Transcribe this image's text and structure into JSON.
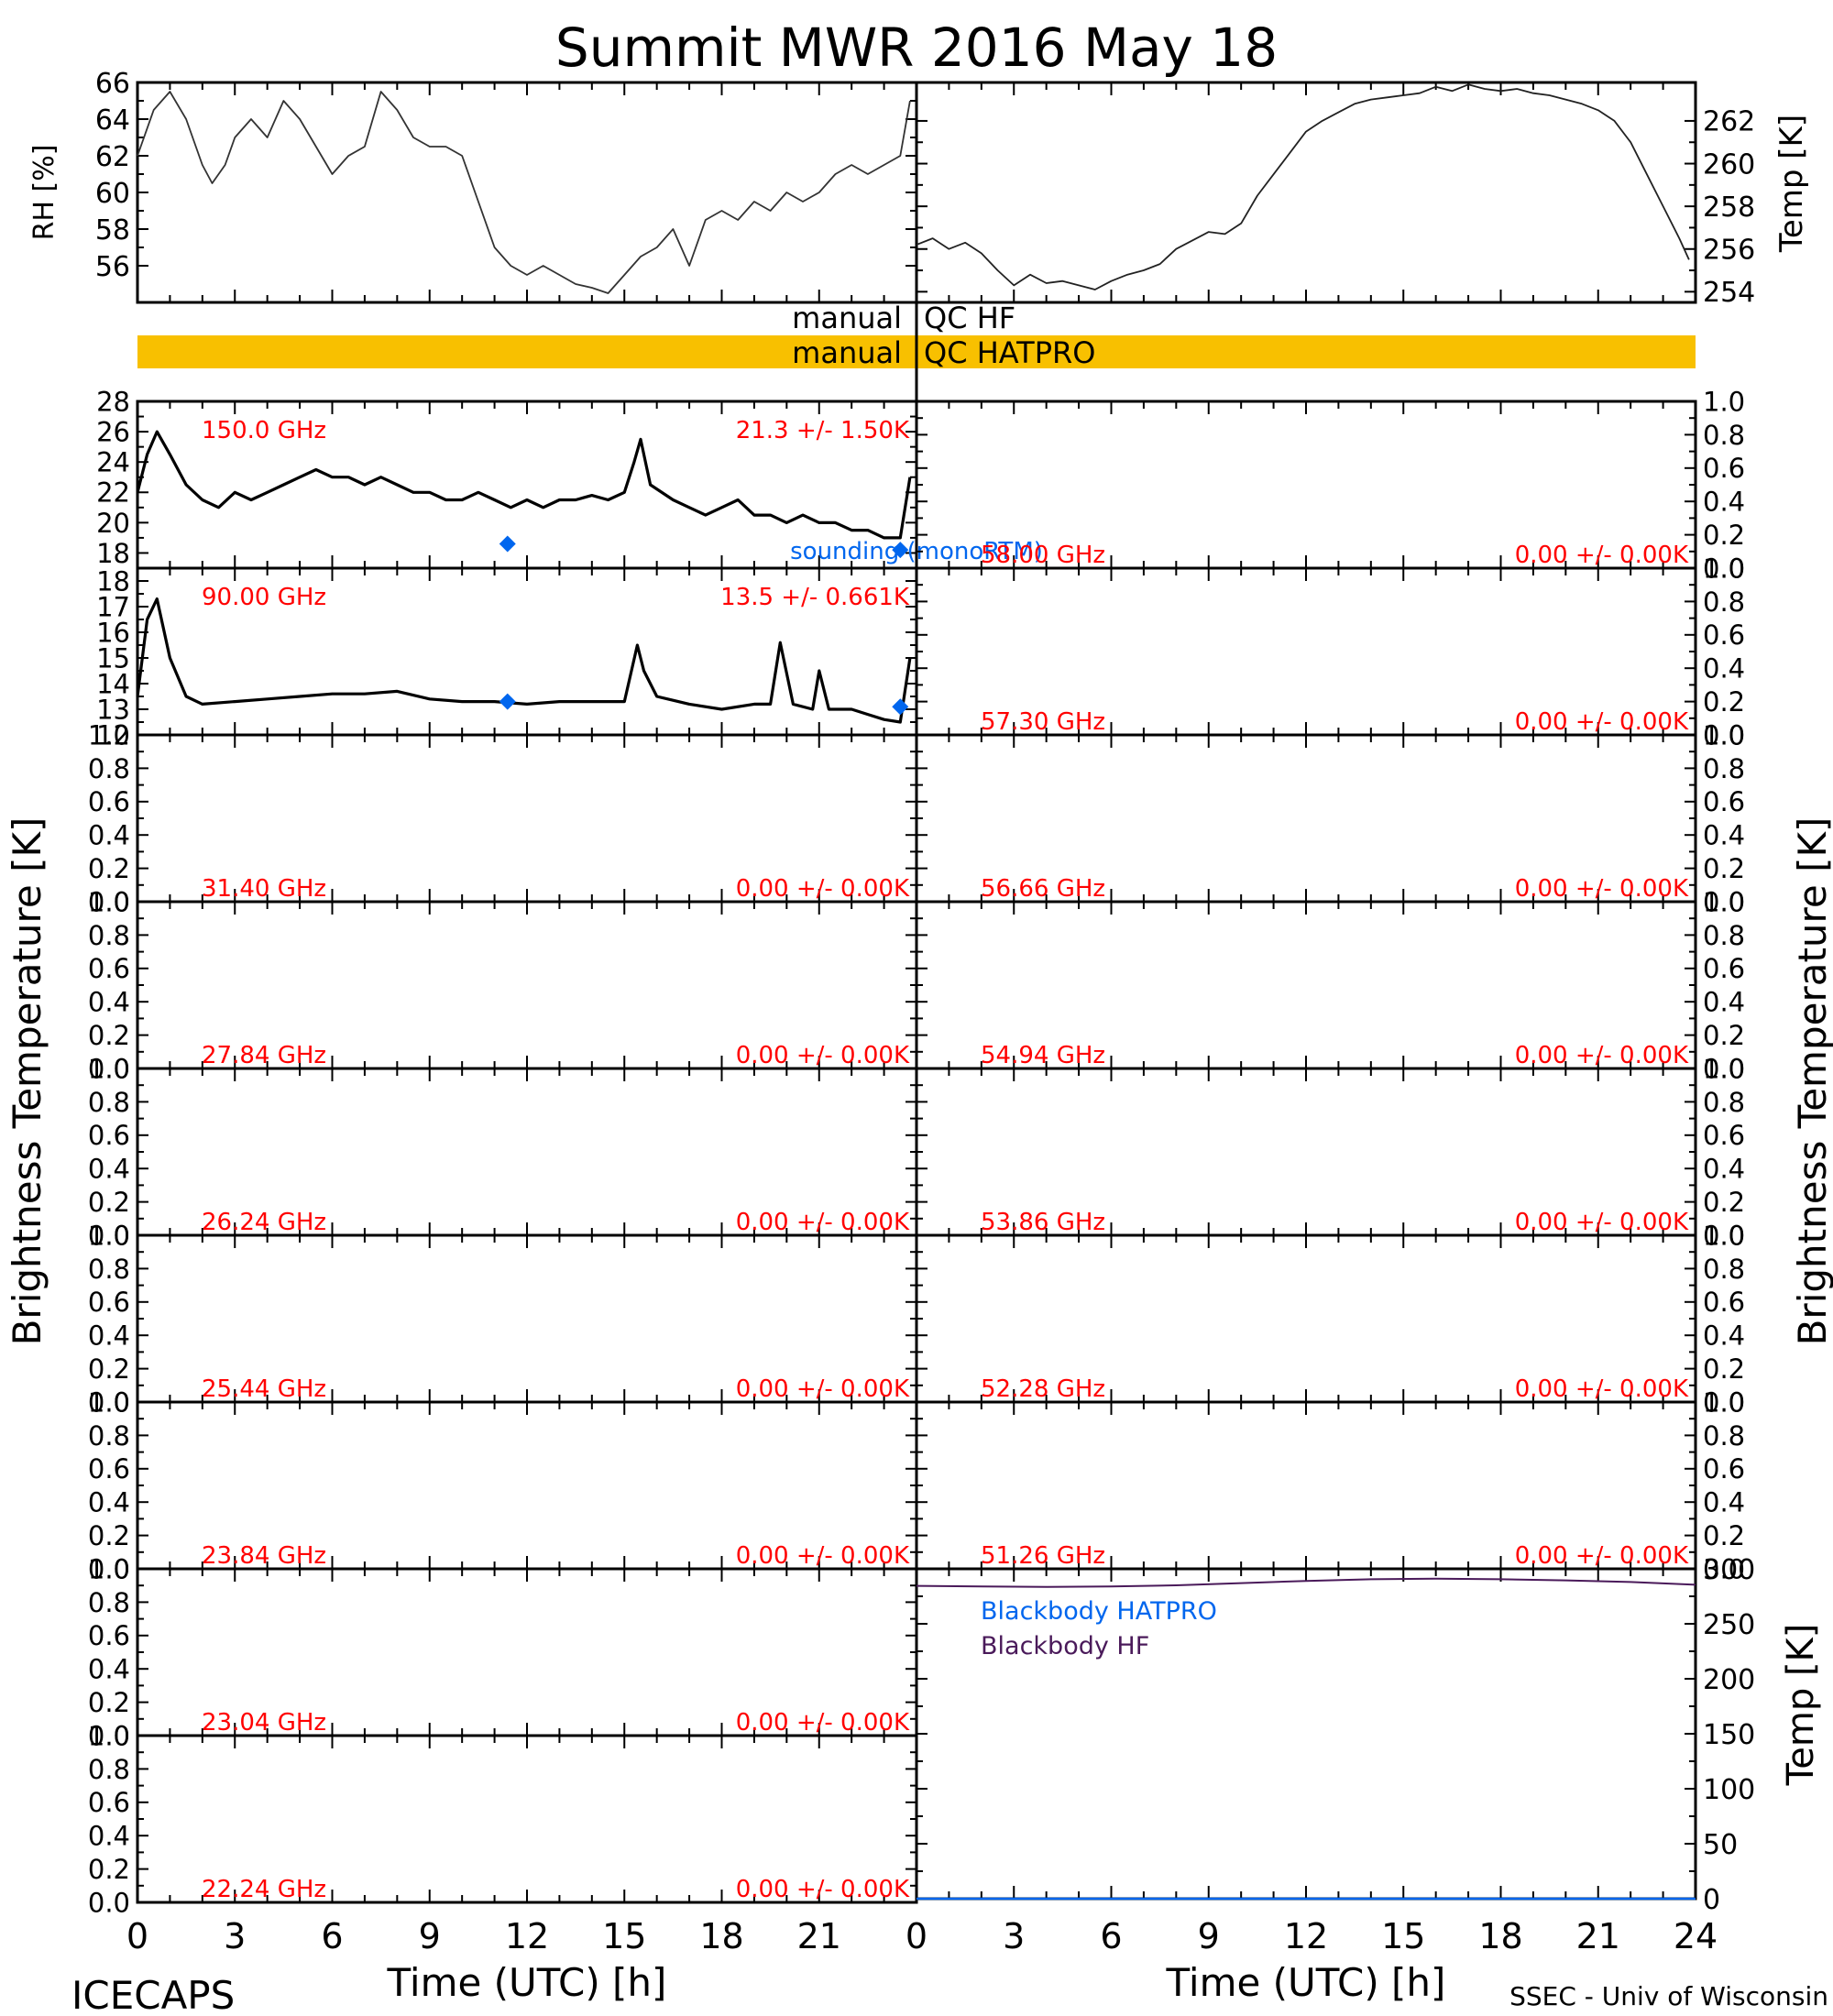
{
  "title": "Summit MWR 2016 May 18",
  "footer": {
    "left": "ICECAPS",
    "right": "SSEC - Univ of Wisconsin",
    "xlabel_left": "Time (UTC) [h]",
    "xlabel_right": "Time (UTC) [h]",
    "ylabel_left": "Brightness Temperature [K]",
    "ylabel_right": "Brightness Temperature [K]"
  },
  "colors": {
    "data_black": "#000000",
    "label_red": "#ff0000",
    "sounding_blue": "#0066ee",
    "qc_bar": "#f8c000",
    "bb_hatpro": "#0066ee",
    "bb_hf": "#4a1a5a"
  },
  "qc": {
    "hf": {
      "left": "manual",
      "right": "QC HF"
    },
    "hatpro": {
      "left": "manual",
      "right": "QC HATPRO"
    }
  },
  "chart_data": [
    {
      "type": "line",
      "panel": "relative-humidity",
      "ylabel": "RH [%]",
      "xlim": [
        0,
        24
      ],
      "ylim": [
        54,
        66
      ],
      "yticks": [
        56,
        58,
        60,
        62,
        64,
        66
      ],
      "series": [
        {
          "x": [
            0,
            0.5,
            1,
            1.5,
            2,
            2.3,
            2.7,
            3,
            3.5,
            4,
            4.5,
            5,
            5.5,
            6,
            6.5,
            7,
            7.5,
            8,
            8.5,
            9,
            9.5,
            10,
            10.5,
            11,
            11.5,
            12,
            12.5,
            13,
            13.5,
            14,
            14.5,
            15,
            15.5,
            16,
            16.5,
            17,
            17.5,
            18,
            18.5,
            19,
            19.5,
            20,
            20.5,
            21,
            21.5,
            22,
            22.5,
            23,
            23.5,
            23.8
          ],
          "y": [
            62,
            64.5,
            65.5,
            64,
            61.5,
            60.5,
            61.5,
            63,
            64,
            63,
            65,
            64,
            62.5,
            61,
            62,
            62.5,
            65.5,
            64.5,
            63,
            62.5,
            62.5,
            62,
            59.5,
            57,
            56,
            55.5,
            56,
            55.5,
            55,
            54.8,
            54.5,
            55.5,
            56.5,
            57,
            58,
            56,
            58.5,
            59,
            58.5,
            59.5,
            59,
            60,
            59.5,
            60,
            61,
            61.5,
            61,
            61.5,
            62,
            65
          ]
        }
      ]
    },
    {
      "type": "line",
      "panel": "temperature",
      "ylabel": "Temp [K]",
      "xlim": [
        0,
        24
      ],
      "ylim": [
        253.5,
        263.8
      ],
      "yticks": [
        254,
        256,
        258,
        260,
        262
      ],
      "series": [
        {
          "x": [
            0,
            0.5,
            1,
            1.5,
            2,
            2.5,
            3,
            3.5,
            4,
            4.5,
            5,
            5.5,
            6,
            6.5,
            7,
            7.5,
            8,
            8.5,
            9,
            9.5,
            10,
            10.5,
            11,
            11.5,
            12,
            12.5,
            13,
            13.5,
            14,
            14.5,
            15,
            15.5,
            16,
            16.5,
            17,
            17.5,
            18,
            18.5,
            19,
            19.5,
            20,
            20.5,
            21,
            21.5,
            22,
            22.5,
            23,
            23.5,
            23.8
          ],
          "y": [
            256.2,
            256.5,
            256,
            256.3,
            255.8,
            255,
            254.3,
            254.8,
            254.4,
            254.5,
            254.3,
            254.1,
            254.5,
            254.8,
            255,
            255.3,
            256,
            256.4,
            256.8,
            256.7,
            257.2,
            258.5,
            259.5,
            260.5,
            261.5,
            262,
            262.4,
            262.8,
            263,
            263.1,
            263.2,
            263.3,
            263.6,
            263.4,
            263.7,
            263.5,
            263.4,
            263.5,
            263.3,
            263.2,
            263,
            262.8,
            262.5,
            262,
            261,
            259.5,
            258,
            256.5,
            255.5
          ]
        }
      ]
    },
    {
      "type": "line",
      "panel": "tb-150",
      "freq_label": "150.0 GHz",
      "stat_label": "21.3 +/-  1.50K",
      "xlim": [
        0,
        24
      ],
      "ylim": [
        17,
        28
      ],
      "yticks": [
        18,
        20,
        22,
        24,
        26,
        28
      ],
      "series": [
        {
          "x": [
            0,
            0.3,
            0.6,
            1,
            1.5,
            2,
            2.5,
            3,
            3.5,
            4,
            4.5,
            5,
            5.5,
            6,
            6.5,
            7,
            7.5,
            8,
            8.5,
            9,
            9.5,
            10,
            10.5,
            11,
            11.5,
            12,
            12.5,
            13,
            13.5,
            14,
            14.5,
            15,
            15.3,
            15.5,
            15.8,
            16.5,
            17,
            17.5,
            18,
            18.5,
            19,
            19.5,
            20,
            20.5,
            21,
            21.5,
            22,
            22.5,
            23,
            23.5,
            23.8
          ],
          "y": [
            22,
            24.5,
            26,
            24.5,
            22.5,
            21.5,
            21,
            22,
            21.5,
            22,
            22.5,
            23,
            23.5,
            23,
            23,
            22.5,
            23,
            22.5,
            22,
            22,
            21.5,
            21.5,
            22,
            21.5,
            21,
            21.5,
            21,
            21.5,
            21.5,
            21.8,
            21.5,
            22,
            24,
            25.5,
            22.5,
            21.5,
            21,
            20.5,
            21,
            21.5,
            20.5,
            20.5,
            20,
            20.5,
            20,
            20,
            19.5,
            19.5,
            19,
            19,
            23
          ]
        }
      ],
      "soundings": [
        {
          "x": 11.4,
          "y": 18.6
        },
        {
          "x": 23.5,
          "y": 18.2
        }
      ],
      "sounding_label": "sounding  (monoRTM)"
    },
    {
      "type": "line",
      "panel": "tb-90",
      "freq_label": "90.00 GHz",
      "stat_label": "13.5 +/-  0.661K",
      "xlim": [
        0,
        24
      ],
      "ylim": [
        12,
        18.5
      ],
      "yticks": [
        12,
        13,
        14,
        15,
        16,
        17,
        18
      ],
      "series": [
        {
          "x": [
            0,
            0.3,
            0.6,
            1,
            1.5,
            2,
            3,
            4,
            5,
            6,
            7,
            8,
            9,
            10,
            11,
            12,
            13,
            14,
            15,
            15.4,
            15.6,
            16,
            17,
            18,
            19,
            19.5,
            19.8,
            20.2,
            20.8,
            21,
            21.3,
            22,
            22.5,
            23,
            23.5,
            23.8
          ],
          "y": [
            13.5,
            16.5,
            17.3,
            15,
            13.5,
            13.2,
            13.3,
            13.4,
            13.5,
            13.6,
            13.6,
            13.7,
            13.4,
            13.3,
            13.3,
            13.2,
            13.3,
            13.3,
            13.3,
            15.5,
            14.5,
            13.5,
            13.2,
            13,
            13.2,
            13.2,
            15.6,
            13.2,
            13,
            14.5,
            13,
            13,
            12.8,
            12.6,
            12.5,
            15
          ]
        }
      ],
      "soundings": [
        {
          "x": 11.4,
          "y": 13.3
        },
        {
          "x": 23.5,
          "y": 13.1
        }
      ]
    },
    {
      "type": "line",
      "panel": "tb-31.40",
      "freq_label": "31.40 GHz",
      "stat_label": "0.00 +/-  0.00K",
      "xlim": [
        0,
        24
      ],
      "ylim": [
        0,
        1
      ],
      "yticks": [
        0.0,
        0.2,
        0.4,
        0.6,
        0.8,
        1.0
      ],
      "series": []
    },
    {
      "type": "line",
      "panel": "tb-27.84",
      "freq_label": "27.84 GHz",
      "stat_label": "0.00 +/-  0.00K",
      "xlim": [
        0,
        24
      ],
      "ylim": [
        0,
        1
      ],
      "yticks": [
        0.0,
        0.2,
        0.4,
        0.6,
        0.8,
        1.0
      ],
      "series": []
    },
    {
      "type": "line",
      "panel": "tb-26.24",
      "freq_label": "26.24 GHz",
      "stat_label": "0.00 +/-  0.00K",
      "xlim": [
        0,
        24
      ],
      "ylim": [
        0,
        1
      ],
      "yticks": [
        0.0,
        0.2,
        0.4,
        0.6,
        0.8,
        1.0
      ],
      "series": []
    },
    {
      "type": "line",
      "panel": "tb-25.44",
      "freq_label": "25.44 GHz",
      "stat_label": "0.00 +/-  0.00K",
      "xlim": [
        0,
        24
      ],
      "ylim": [
        0,
        1
      ],
      "yticks": [
        0.0,
        0.2,
        0.4,
        0.6,
        0.8,
        1.0
      ],
      "series": []
    },
    {
      "type": "line",
      "panel": "tb-23.84",
      "freq_label": "23.84 GHz",
      "stat_label": "0.00 +/-  0.00K",
      "xlim": [
        0,
        24
      ],
      "ylim": [
        0,
        1
      ],
      "yticks": [
        0.0,
        0.2,
        0.4,
        0.6,
        0.8,
        1.0
      ],
      "series": []
    },
    {
      "type": "line",
      "panel": "tb-23.04",
      "freq_label": "23.04 GHz",
      "stat_label": "0.00 +/-  0.00K",
      "xlim": [
        0,
        24
      ],
      "ylim": [
        0,
        1
      ],
      "yticks": [
        0.0,
        0.2,
        0.4,
        0.6,
        0.8,
        1.0
      ],
      "series": []
    },
    {
      "type": "line",
      "panel": "tb-22.24",
      "freq_label": "22.24 GHz",
      "stat_label": "0.00 +/-  0.00K",
      "xlim": [
        0,
        24
      ],
      "ylim": [
        0,
        1
      ],
      "yticks": [
        0.0,
        0.2,
        0.4,
        0.6,
        0.8,
        1.0
      ],
      "series": []
    },
    {
      "type": "line",
      "panel": "tb-58.00",
      "freq_label": "58.00 GHz",
      "stat_label": "0.00 +/-  0.00K",
      "xlim": [
        0,
        24
      ],
      "ylim": [
        0,
        1
      ],
      "yticks": [
        0.0,
        0.2,
        0.4,
        0.6,
        0.8,
        1.0
      ],
      "series": []
    },
    {
      "type": "line",
      "panel": "tb-57.30",
      "freq_label": "57.30 GHz",
      "stat_label": "0.00 +/-  0.00K",
      "xlim": [
        0,
        24
      ],
      "ylim": [
        0,
        1
      ],
      "yticks": [
        0.0,
        0.2,
        0.4,
        0.6,
        0.8,
        1.0
      ],
      "series": []
    },
    {
      "type": "line",
      "panel": "tb-56.66",
      "freq_label": "56.66 GHz",
      "stat_label": "0.00 +/-  0.00K",
      "xlim": [
        0,
        24
      ],
      "ylim": [
        0,
        1
      ],
      "yticks": [
        0.0,
        0.2,
        0.4,
        0.6,
        0.8,
        1.0
      ],
      "series": []
    },
    {
      "type": "line",
      "panel": "tb-54.94",
      "freq_label": "54.94 GHz",
      "stat_label": "0.00 +/-  0.00K",
      "xlim": [
        0,
        24
      ],
      "ylim": [
        0,
        1
      ],
      "yticks": [
        0.0,
        0.2,
        0.4,
        0.6,
        0.8,
        1.0
      ],
      "series": []
    },
    {
      "type": "line",
      "panel": "tb-53.86",
      "freq_label": "53.86 GHz",
      "stat_label": "0.00 +/-  0.00K",
      "xlim": [
        0,
        24
      ],
      "ylim": [
        0,
        1
      ],
      "yticks": [
        0.0,
        0.2,
        0.4,
        0.6,
        0.8,
        1.0
      ],
      "series": []
    },
    {
      "type": "line",
      "panel": "tb-52.28",
      "freq_label": "52.28 GHz",
      "stat_label": "0.00 +/-  0.00K",
      "xlim": [
        0,
        24
      ],
      "ylim": [
        0,
        1
      ],
      "yticks": [
        0.0,
        0.2,
        0.4,
        0.6,
        0.8,
        1.0
      ],
      "series": []
    },
    {
      "type": "line",
      "panel": "tb-51.26",
      "freq_label": "51.26 GHz",
      "stat_label": "0.00 +/-  0.00K",
      "xlim": [
        0,
        24
      ],
      "ylim": [
        0,
        1
      ],
      "yticks": [
        0.0,
        0.2,
        0.4,
        0.6,
        0.8,
        1.0
      ],
      "series": []
    },
    {
      "type": "line",
      "panel": "blackbody",
      "ylabel": "Temp [K]",
      "xlim": [
        0,
        24
      ],
      "ylim": [
        0,
        300
      ],
      "yticks": [
        0,
        50,
        100,
        150,
        200,
        250,
        300
      ],
      "xticks": [
        0,
        3,
        6,
        9,
        12,
        15,
        18,
        21,
        24
      ],
      "series": [
        {
          "name": "Blackbody HATPRO",
          "x": [
            0,
            24
          ],
          "y": [
            0,
            0
          ]
        },
        {
          "name": "Blackbody HF",
          "x": [
            0,
            2,
            4,
            6,
            8,
            10,
            12,
            14,
            16,
            18,
            20,
            22,
            24
          ],
          "y": [
            284.5,
            284,
            283.5,
            284,
            285,
            287,
            289,
            290.5,
            291,
            290.5,
            289.5,
            288,
            285.5
          ]
        }
      ]
    }
  ]
}
